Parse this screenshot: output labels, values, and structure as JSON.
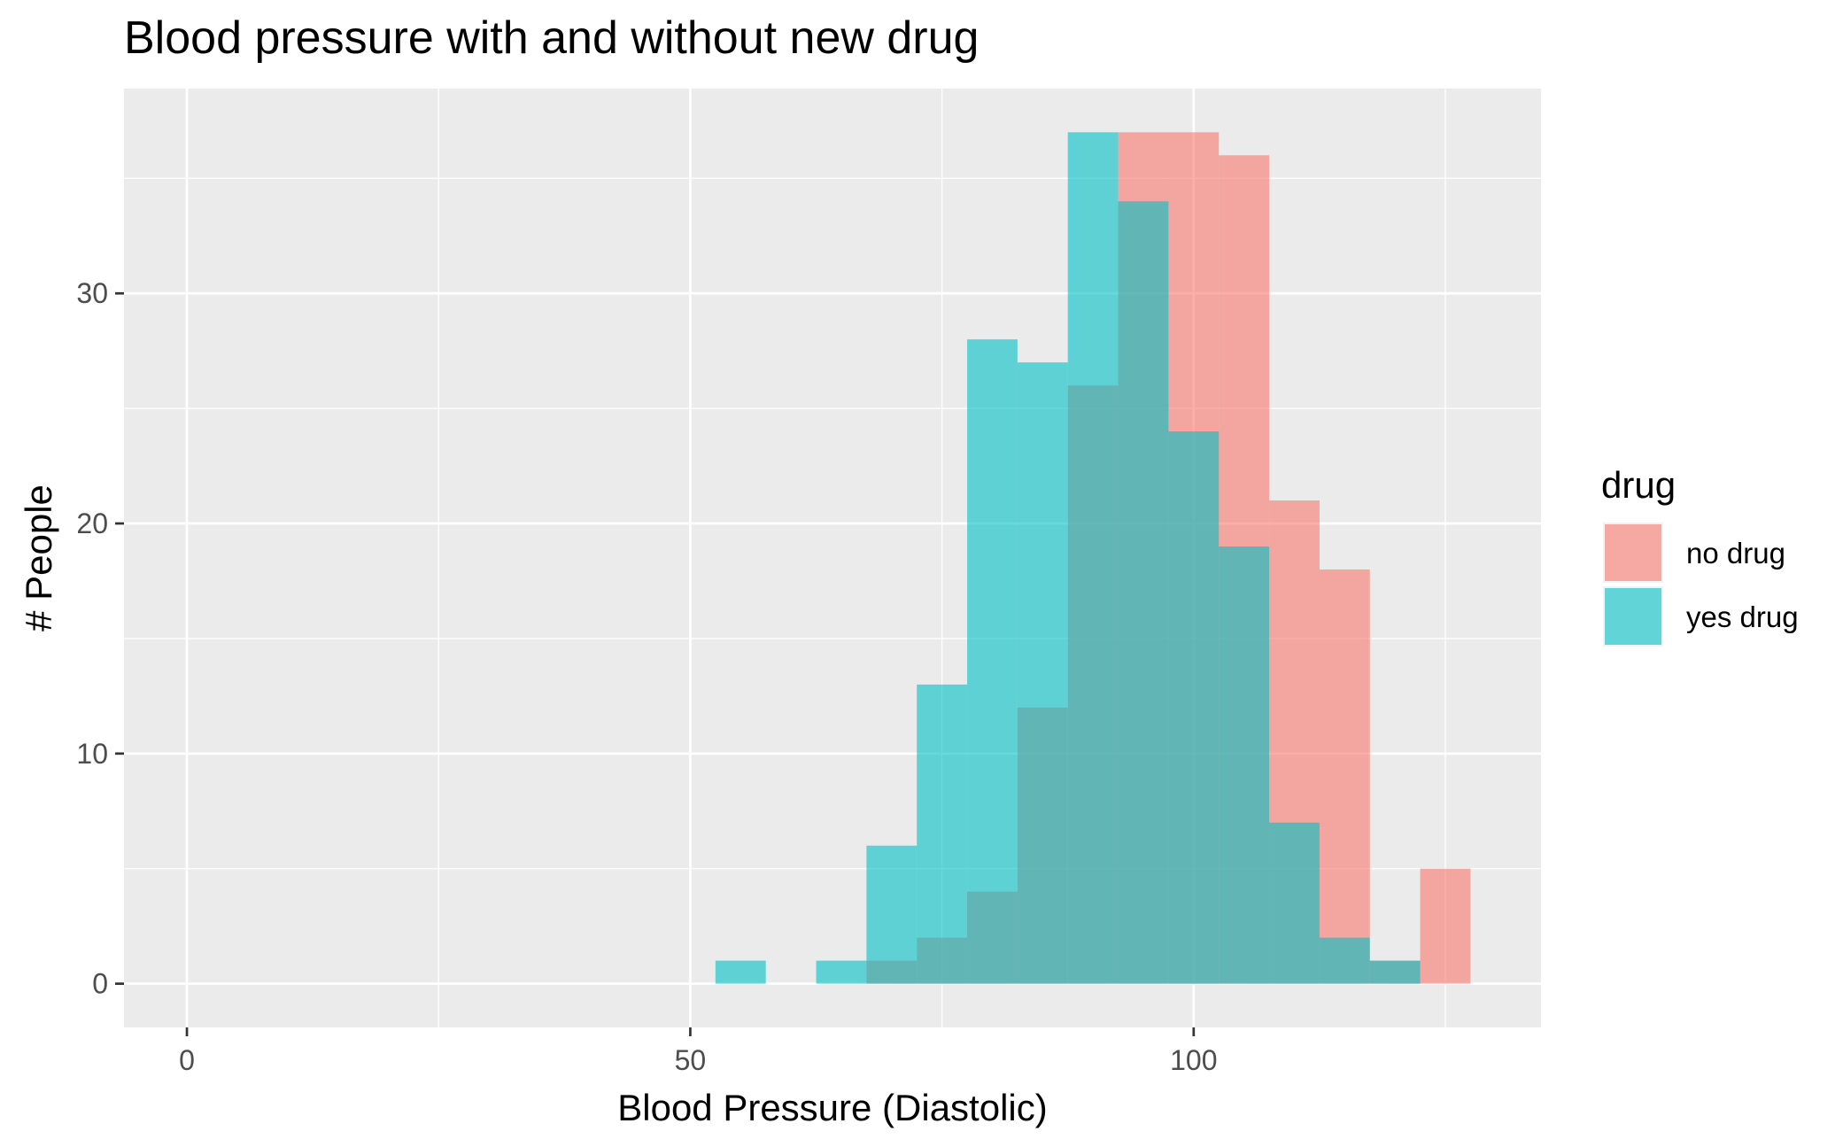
{
  "chart_data": {
    "type": "bar",
    "subtype": "overlapping histogram",
    "title": "Blood pressure with and without new drug",
    "xlabel": "Blood Pressure (Diastolic)",
    "ylabel": "# People",
    "xlim": [
      -6.25,
      134.5
    ],
    "ylim": [
      -1.9,
      38.9
    ],
    "xticks": [
      0,
      50,
      100
    ],
    "yticks": [
      0,
      10,
      20,
      30
    ],
    "grid": true,
    "bin_width": 5,
    "legend": {
      "title": "drug",
      "position": "right"
    },
    "series": [
      {
        "name": "no drug",
        "color": "#F8766D",
        "bins": [
          {
            "x0": 67.5,
            "x1": 72.5,
            "count": 1
          },
          {
            "x0": 72.5,
            "x1": 77.5,
            "count": 2
          },
          {
            "x0": 77.5,
            "x1": 82.5,
            "count": 4
          },
          {
            "x0": 82.5,
            "x1": 87.5,
            "count": 12
          },
          {
            "x0": 87.5,
            "x1": 92.5,
            "count": 26
          },
          {
            "x0": 92.5,
            "x1": 97.5,
            "count": 37
          },
          {
            "x0": 97.5,
            "x1": 102.5,
            "count": 37
          },
          {
            "x0": 102.5,
            "x1": 107.5,
            "count": 36
          },
          {
            "x0": 107.5,
            "x1": 112.5,
            "count": 21
          },
          {
            "x0": 112.5,
            "x1": 117.5,
            "count": 18
          },
          {
            "x0": 117.5,
            "x1": 122.5,
            "count": 1
          },
          {
            "x0": 122.5,
            "x1": 127.5,
            "count": 5
          }
        ]
      },
      {
        "name": "yes drug",
        "color": "#00BFC4",
        "bins": [
          {
            "x0": 52.5,
            "x1": 57.5,
            "count": 1
          },
          {
            "x0": 62.5,
            "x1": 67.5,
            "count": 1
          },
          {
            "x0": 67.5,
            "x1": 72.5,
            "count": 6
          },
          {
            "x0": 72.5,
            "x1": 77.5,
            "count": 13
          },
          {
            "x0": 77.5,
            "x1": 82.5,
            "count": 28
          },
          {
            "x0": 82.5,
            "x1": 87.5,
            "count": 27
          },
          {
            "x0": 87.5,
            "x1": 92.5,
            "count": 37
          },
          {
            "x0": 92.5,
            "x1": 97.5,
            "count": 34
          },
          {
            "x0": 97.5,
            "x1": 102.5,
            "count": 24
          },
          {
            "x0": 102.5,
            "x1": 107.5,
            "count": 19
          },
          {
            "x0": 107.5,
            "x1": 112.5,
            "count": 7
          },
          {
            "x0": 112.5,
            "x1": 117.5,
            "count": 2
          },
          {
            "x0": 117.5,
            "x1": 122.5,
            "count": 1
          }
        ]
      }
    ],
    "panel_background": "#EBEBEB",
    "grid_color": "#FFFFFF",
    "opacity": 0.6
  }
}
